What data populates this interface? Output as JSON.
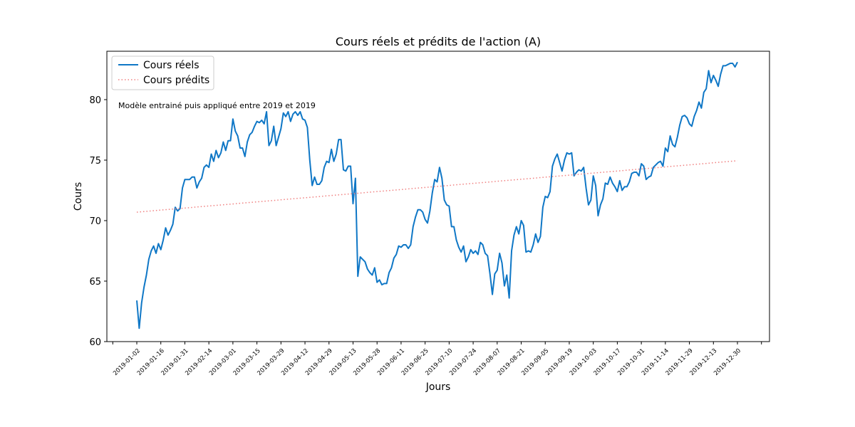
{
  "chart_data": {
    "type": "line",
    "title": "Cours réels et prédits de l'action (A)",
    "xlabel": "Jours",
    "ylabel": "Cours",
    "annotation": "Modèle entrainé puis appliqué entre 2019 et 2019",
    "ylim": [
      60,
      84
    ],
    "yticks": [
      60,
      65,
      70,
      75,
      80
    ],
    "xticks": [
      "2019-01-02",
      "2019-01-16",
      "2019-01-31",
      "2019-02-14",
      "2019-03-01",
      "2019-03-15",
      "2019-03-29",
      "2019-04-12",
      "2019-04-29",
      "2019-05-13",
      "2019-05-28",
      "2019-06-11",
      "2019-06-25",
      "2019-07-10",
      "2019-07-24",
      "2019-08-07",
      "2019-08-21",
      "2019-09-05",
      "2019-09-19",
      "2019-10-03",
      "2019-10-17",
      "2019-10-31",
      "2019-11-14",
      "2019-11-29",
      "2019-12-13",
      "2019-12-30"
    ],
    "grid": false,
    "legend_position": "top-left",
    "series": [
      {
        "name": "Cours réels",
        "color": "#0f77c6",
        "style": "solid",
        "anchors": [
          [
            0,
            63.4
          ],
          [
            1,
            61.1
          ],
          [
            2,
            63.2
          ],
          [
            3,
            64.5
          ],
          [
            4,
            65.5
          ],
          [
            5,
            66.8
          ],
          [
            6,
            67.5
          ],
          [
            7,
            67.9
          ],
          [
            8,
            67.3
          ],
          [
            9,
            68.1
          ],
          [
            10,
            67.6
          ],
          [
            11,
            68.4
          ],
          [
            12,
            69.4
          ],
          [
            13,
            68.8
          ],
          [
            14,
            69.2
          ],
          [
            15,
            69.7
          ],
          [
            16,
            71.1
          ],
          [
            17,
            70.8
          ],
          [
            18,
            71.0
          ],
          [
            19,
            72.7
          ],
          [
            20,
            73.4
          ],
          [
            21,
            73.4
          ],
          [
            22,
            73.4
          ],
          [
            23,
            73.6
          ],
          [
            24,
            73.6
          ],
          [
            25,
            72.7
          ],
          [
            26,
            73.2
          ],
          [
            27,
            73.5
          ],
          [
            28,
            74.4
          ],
          [
            29,
            74.6
          ],
          [
            30,
            74.4
          ],
          [
            31,
            75.5
          ],
          [
            32,
            74.9
          ],
          [
            33,
            75.8
          ],
          [
            34,
            75.2
          ],
          [
            35,
            75.6
          ],
          [
            36,
            76.5
          ],
          [
            37,
            75.8
          ],
          [
            38,
            76.6
          ],
          [
            39,
            76.6
          ],
          [
            40,
            78.4
          ],
          [
            41,
            77.4
          ],
          [
            42,
            77.0
          ],
          [
            43,
            76.0
          ],
          [
            44,
            76.0
          ],
          [
            45,
            75.3
          ],
          [
            46,
            76.5
          ],
          [
            47,
            77.1
          ],
          [
            48,
            77.3
          ],
          [
            49,
            77.8
          ],
          [
            50,
            78.2
          ],
          [
            51,
            78.1
          ],
          [
            52,
            78.3
          ],
          [
            53,
            78.0
          ],
          [
            54,
            79.0
          ],
          [
            55,
            76.2
          ],
          [
            56,
            76.6
          ],
          [
            57,
            77.8
          ],
          [
            58,
            76.2
          ],
          [
            59,
            76.9
          ],
          [
            60,
            77.6
          ],
          [
            61,
            78.9
          ],
          [
            62,
            78.6
          ],
          [
            63,
            79.0
          ],
          [
            64,
            78.2
          ],
          [
            65,
            78.8
          ],
          [
            66,
            79.0
          ],
          [
            67,
            78.7
          ],
          [
            68,
            79.0
          ],
          [
            69,
            78.4
          ],
          [
            70,
            78.3
          ],
          [
            71,
            77.7
          ],
          [
            72,
            75.0
          ],
          [
            73,
            72.9
          ],
          [
            74,
            73.6
          ],
          [
            75,
            73.0
          ],
          [
            76,
            73.0
          ],
          [
            77,
            73.3
          ],
          [
            78,
            74.4
          ],
          [
            79,
            74.9
          ],
          [
            80,
            74.8
          ],
          [
            81,
            75.9
          ],
          [
            82,
            74.9
          ],
          [
            83,
            75.5
          ],
          [
            84,
            76.7
          ],
          [
            85,
            76.7
          ],
          [
            86,
            74.2
          ],
          [
            87,
            74.1
          ],
          [
            88,
            74.5
          ],
          [
            89,
            74.5
          ],
          [
            90,
            71.4
          ],
          [
            91,
            73.5
          ],
          [
            92,
            65.4
          ],
          [
            93,
            67.0
          ],
          [
            94,
            66.8
          ],
          [
            95,
            66.6
          ],
          [
            96,
            66.0
          ],
          [
            97,
            65.7
          ],
          [
            98,
            65.5
          ],
          [
            99,
            66.1
          ],
          [
            100,
            64.9
          ],
          [
            101,
            65.1
          ],
          [
            102,
            64.7
          ],
          [
            103,
            64.8
          ],
          [
            104,
            64.8
          ],
          [
            105,
            65.7
          ],
          [
            106,
            66.1
          ],
          [
            107,
            66.9
          ],
          [
            108,
            67.2
          ],
          [
            109,
            67.9
          ],
          [
            110,
            67.8
          ],
          [
            111,
            68.0
          ],
          [
            112,
            68.0
          ],
          [
            113,
            67.7
          ],
          [
            114,
            68.0
          ],
          [
            115,
            69.5
          ],
          [
            116,
            70.3
          ],
          [
            117,
            70.9
          ],
          [
            118,
            70.9
          ],
          [
            119,
            70.7
          ],
          [
            120,
            70.1
          ],
          [
            121,
            69.8
          ],
          [
            122,
            70.8
          ],
          [
            123,
            72.3
          ],
          [
            124,
            73.4
          ],
          [
            125,
            73.2
          ],
          [
            126,
            74.4
          ],
          [
            127,
            73.5
          ],
          [
            128,
            71.7
          ],
          [
            129,
            71.3
          ],
          [
            130,
            71.2
          ],
          [
            131,
            69.5
          ],
          [
            132,
            69.5
          ],
          [
            133,
            68.4
          ],
          [
            134,
            67.8
          ],
          [
            135,
            67.4
          ],
          [
            136,
            67.9
          ],
          [
            137,
            66.6
          ],
          [
            138,
            67.0
          ],
          [
            139,
            67.6
          ],
          [
            140,
            67.3
          ],
          [
            141,
            67.5
          ],
          [
            142,
            67.2
          ],
          [
            143,
            68.2
          ],
          [
            144,
            68.0
          ],
          [
            145,
            67.3
          ],
          [
            146,
            67.1
          ],
          [
            147,
            65.6
          ],
          [
            148,
            63.9
          ],
          [
            149,
            65.6
          ],
          [
            150,
            65.9
          ],
          [
            151,
            67.3
          ],
          [
            152,
            66.5
          ],
          [
            153,
            64.6
          ],
          [
            154,
            65.5
          ],
          [
            155,
            63.6
          ],
          [
            156,
            67.5
          ],
          [
            157,
            68.8
          ],
          [
            158,
            69.5
          ],
          [
            159,
            68.9
          ],
          [
            160,
            70.0
          ],
          [
            161,
            69.6
          ],
          [
            162,
            67.4
          ],
          [
            163,
            67.5
          ],
          [
            164,
            67.4
          ],
          [
            165,
            68.0
          ],
          [
            166,
            68.9
          ],
          [
            167,
            68.2
          ],
          [
            168,
            68.7
          ],
          [
            169,
            71.1
          ],
          [
            170,
            72.0
          ],
          [
            171,
            71.9
          ],
          [
            172,
            72.4
          ],
          [
            173,
            74.5
          ],
          [
            174,
            75.1
          ],
          [
            175,
            75.5
          ],
          [
            176,
            74.8
          ],
          [
            177,
            74.1
          ],
          [
            178,
            75.0
          ],
          [
            179,
            75.6
          ],
          [
            180,
            75.5
          ],
          [
            181,
            75.6
          ],
          [
            182,
            73.7
          ],
          [
            183,
            74.0
          ],
          [
            184,
            74.2
          ],
          [
            185,
            74.1
          ],
          [
            186,
            74.4
          ],
          [
            187,
            72.7
          ],
          [
            188,
            71.3
          ],
          [
            189,
            71.7
          ],
          [
            190,
            73.7
          ],
          [
            191,
            72.9
          ],
          [
            192,
            70.4
          ],
          [
            193,
            71.3
          ],
          [
            194,
            71.8
          ],
          [
            195,
            73.1
          ],
          [
            196,
            73.0
          ],
          [
            197,
            73.6
          ],
          [
            198,
            73.1
          ],
          [
            199,
            72.8
          ],
          [
            200,
            72.4
          ],
          [
            201,
            73.3
          ],
          [
            202,
            72.5
          ],
          [
            203,
            72.8
          ],
          [
            204,
            72.8
          ],
          [
            205,
            73.2
          ],
          [
            206,
            73.9
          ],
          [
            207,
            74.0
          ],
          [
            208,
            74.0
          ],
          [
            209,
            73.7
          ],
          [
            210,
            74.7
          ],
          [
            211,
            74.5
          ],
          [
            212,
            73.4
          ],
          [
            213,
            73.6
          ],
          [
            214,
            73.7
          ],
          [
            215,
            74.4
          ],
          [
            216,
            74.6
          ],
          [
            217,
            74.8
          ],
          [
            218,
            74.9
          ],
          [
            219,
            74.5
          ],
          [
            220,
            76.0
          ],
          [
            221,
            75.7
          ],
          [
            222,
            77.0
          ],
          [
            223,
            76.3
          ],
          [
            224,
            76.1
          ],
          [
            225,
            76.9
          ],
          [
            226,
            77.9
          ],
          [
            227,
            78.6
          ],
          [
            228,
            78.7
          ],
          [
            229,
            78.5
          ],
          [
            230,
            78.0
          ],
          [
            231,
            77.8
          ],
          [
            232,
            78.6
          ],
          [
            233,
            79.1
          ],
          [
            234,
            79.8
          ],
          [
            235,
            79.3
          ],
          [
            236,
            80.6
          ],
          [
            237,
            80.9
          ],
          [
            238,
            82.4
          ],
          [
            239,
            81.4
          ],
          [
            240,
            82.0
          ],
          [
            241,
            81.6
          ],
          [
            242,
            81.1
          ],
          [
            243,
            82.1
          ],
          [
            244,
            82.8
          ],
          [
            245,
            82.8
          ],
          [
            246,
            82.9
          ],
          [
            247,
            83.0
          ],
          [
            248,
            83.0
          ],
          [
            249,
            82.7
          ],
          [
            250,
            83.1
          ]
        ]
      },
      {
        "name": "Cours prédits",
        "color": "#f08080",
        "style": "dotted",
        "anchors": [
          [
            0,
            70.7
          ],
          [
            250,
            74.95
          ]
        ]
      }
    ]
  }
}
